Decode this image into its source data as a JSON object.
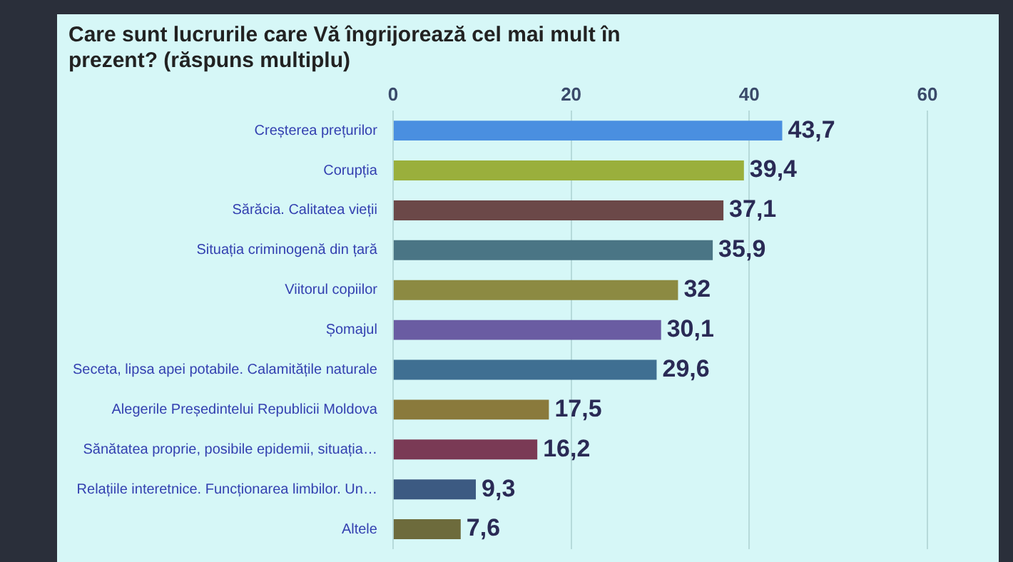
{
  "chart_data": {
    "type": "bar",
    "orientation": "horizontal",
    "title": "Care sunt lucrurile care Vă îngrijorează cel mai mult în prezent? (răspuns multiplu)",
    "categories": [
      "Creșterea prețurilor",
      "Corupția",
      "Sărăcia. Calitatea vieții",
      "Situația criminogenă din țară",
      "Viitorul copiilor",
      "Șomajul",
      "Seceta, lipsa apei potabile. Calamitățile naturale",
      "Alegerile Președintelui Republicii Moldova",
      "Sănătatea proprie, posibile epidemii, situația…",
      "Relațiile interetnice. Funcționarea limbilor. Un…",
      "Altele"
    ],
    "values": [
      43.7,
      39.4,
      37.1,
      35.9,
      32,
      30.1,
      29.6,
      17.5,
      16.2,
      9.3,
      7.6
    ],
    "value_labels": [
      "43,7",
      "39,4",
      "37,1",
      "35,9",
      "32",
      "30,1",
      "29,6",
      "17,5",
      "16,2",
      "9,3",
      "7,6"
    ],
    "colors": [
      "#4a8fe0",
      "#9aaf3c",
      "#6b4848",
      "#4a7585",
      "#8c8a42",
      "#6a5ca2",
      "#3f6f92",
      "#8a7a3c",
      "#7a3a55",
      "#3c5a82",
      "#6d6b3c"
    ],
    "xlim": [
      0,
      60
    ],
    "xticks": [
      0,
      20,
      40,
      60
    ],
    "grid": "x",
    "legend": false
  }
}
